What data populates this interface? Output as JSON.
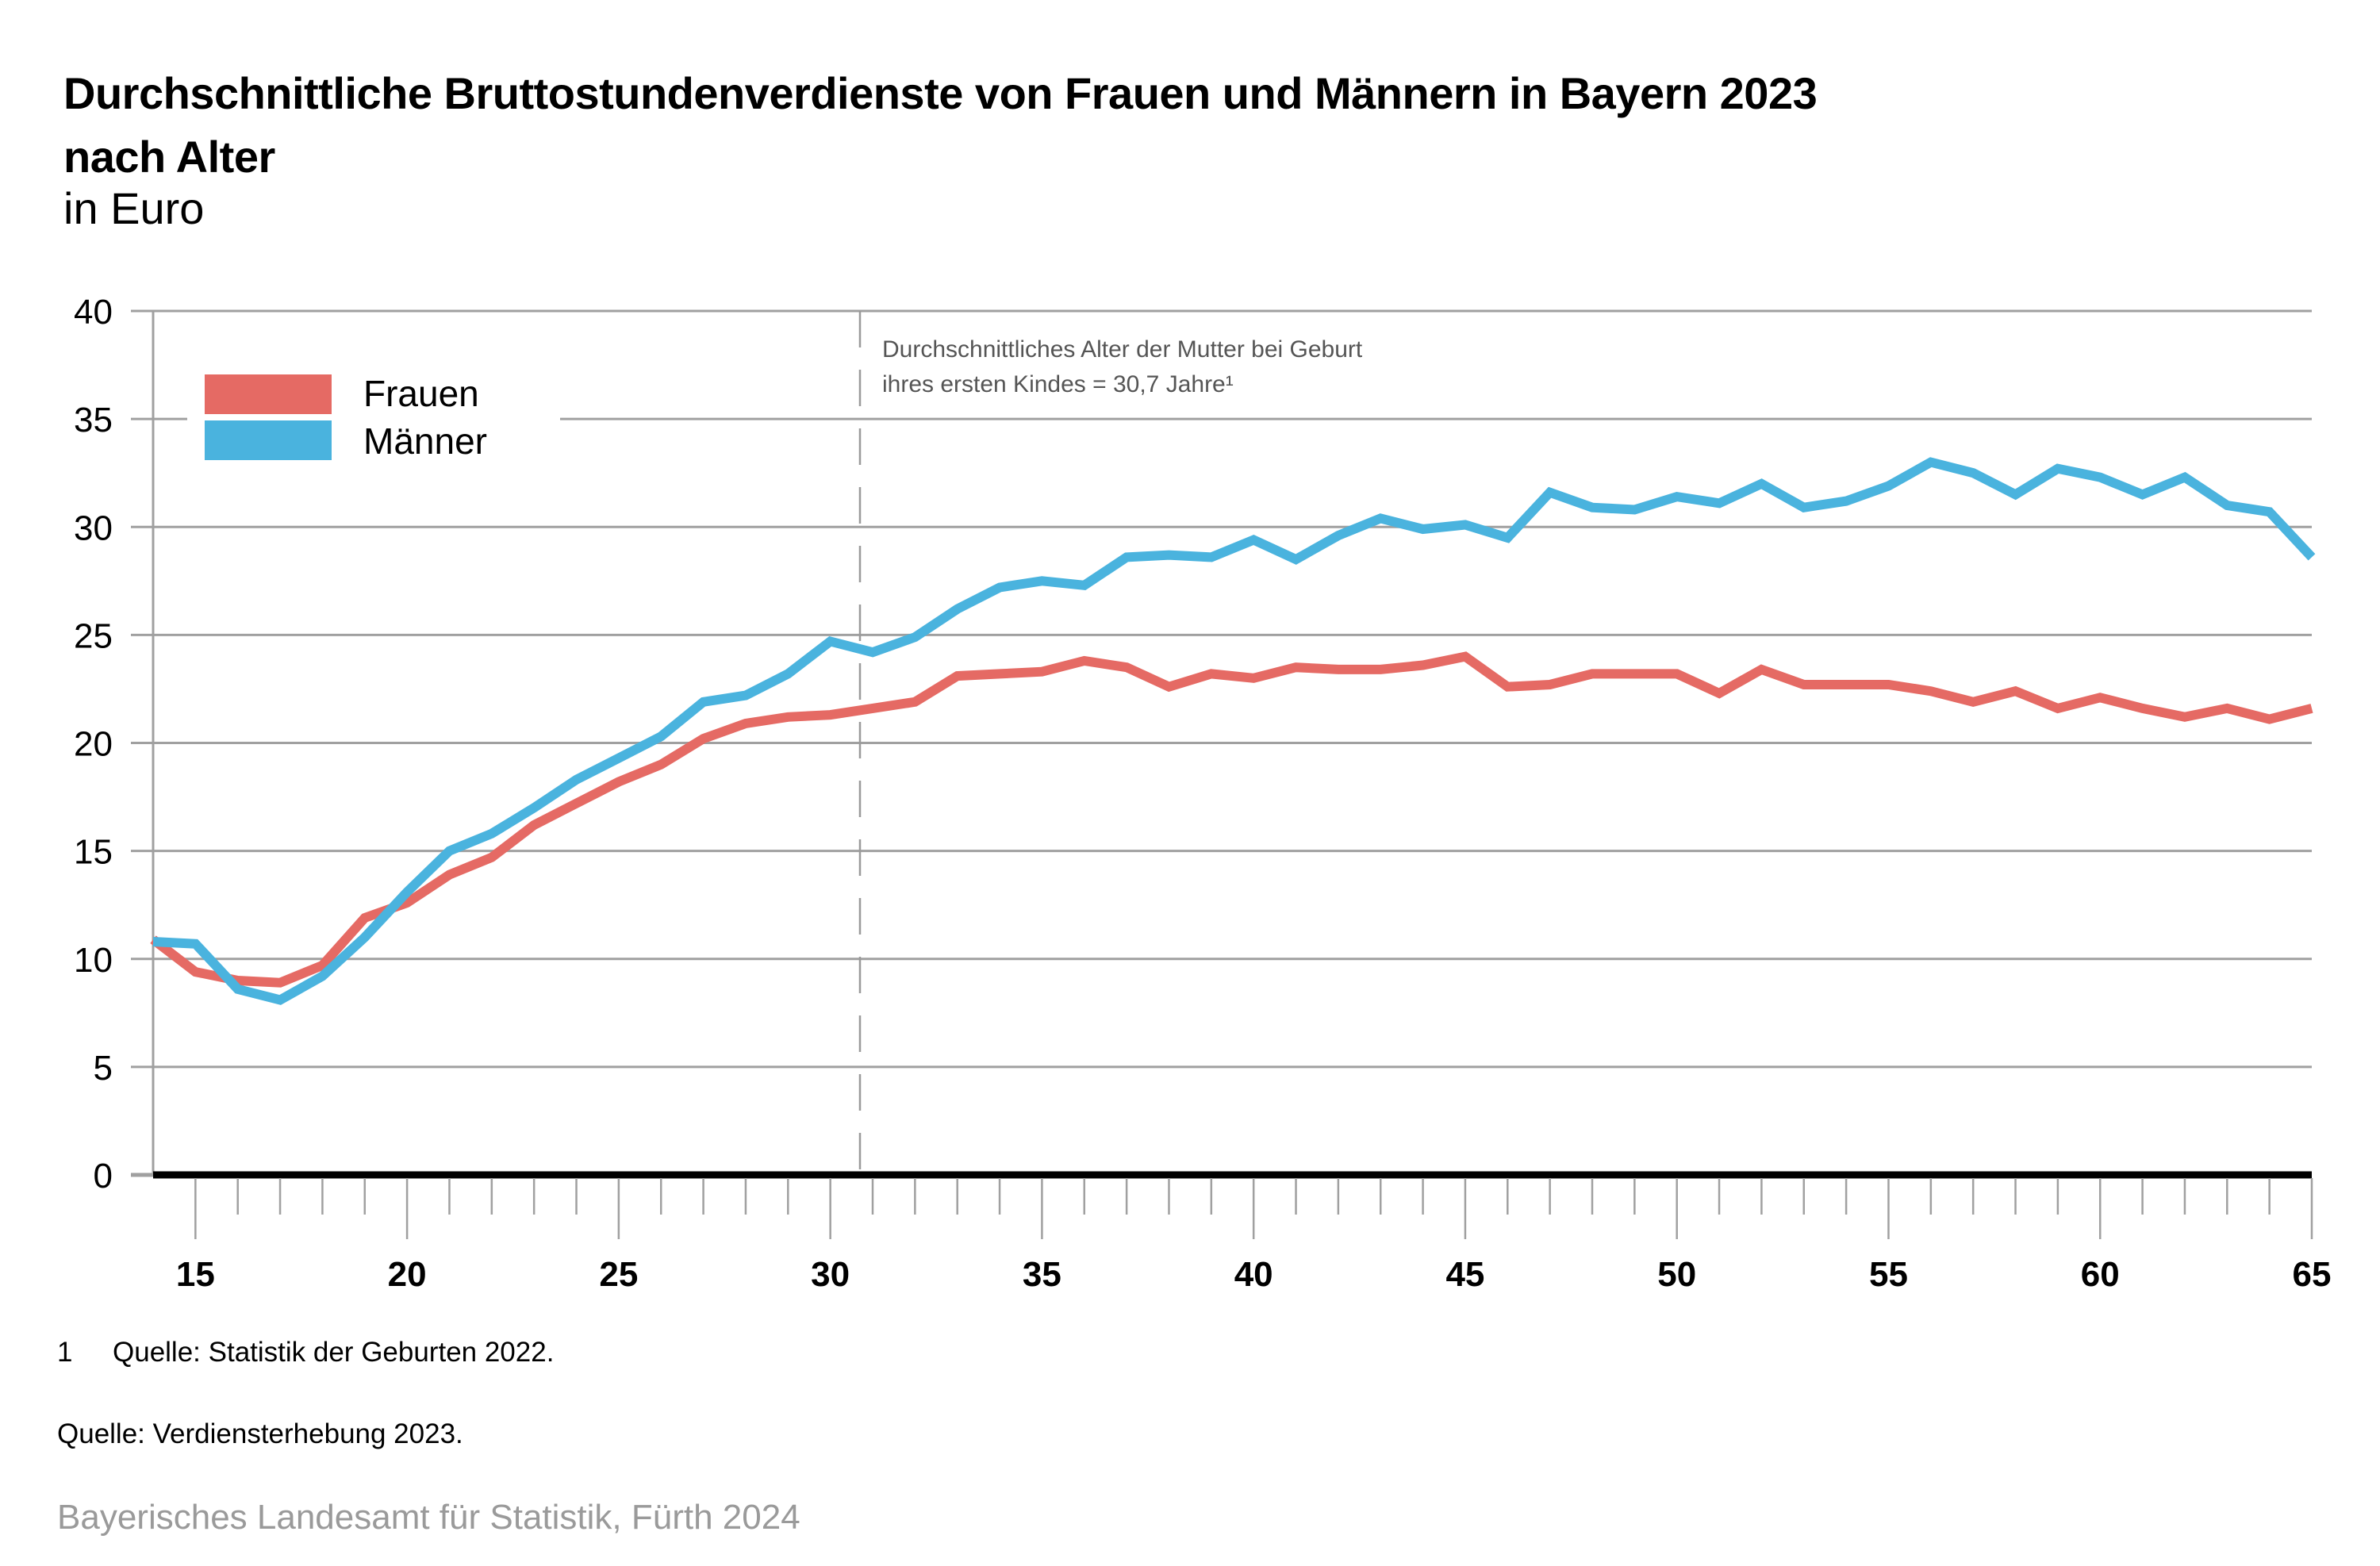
{
  "header": {
    "title_line1": "Durchschnittliche Bruttostundenverdienste von Frauen und Männern in Bayern 2023",
    "title_line2": "nach Alter",
    "subtitle": "in Euro"
  },
  "footer": {
    "footnote_number": "1",
    "footnote_text": "Quelle: Statistik der Geburten 2022.",
    "source": "Quelle: Verdiensterhebung 2023.",
    "credit": "Bayerisches Landesamt für Statistik, Fürth 2024"
  },
  "chart_data": {
    "type": "line",
    "title": "Durchschnittliche Bruttostundenverdienste von Frauen und Männern in Bayern 2023 nach Alter",
    "subtitle": "in Euro",
    "xlabel": "",
    "ylabel": "",
    "xlim": [
      14,
      65
    ],
    "ylim": [
      0,
      40
    ],
    "yticks": [
      0,
      5,
      10,
      15,
      20,
      25,
      30,
      35,
      40
    ],
    "ytick_labels": [
      "0",
      "5",
      "10",
      "15",
      "20",
      "25",
      "30",
      "35",
      "40"
    ],
    "xticks": [
      15,
      20,
      25,
      30,
      35,
      40,
      45,
      50,
      55,
      60,
      65
    ],
    "xtick_labels": [
      "15",
      "20",
      "25",
      "30",
      "35",
      "40",
      "45",
      "50",
      "55",
      "60",
      "65"
    ],
    "grid": "horizontal",
    "legend_position": "top-left",
    "x": [
      14,
      15,
      16,
      17,
      18,
      19,
      20,
      21,
      22,
      23,
      24,
      25,
      26,
      27,
      28,
      29,
      30,
      31,
      32,
      33,
      34,
      35,
      36,
      37,
      38,
      39,
      40,
      41,
      42,
      43,
      44,
      45,
      46,
      47,
      48,
      49,
      50,
      51,
      52,
      53,
      54,
      55,
      56,
      57,
      58,
      59,
      60,
      61,
      62,
      63,
      64,
      65
    ],
    "series": [
      {
        "name": "Frauen",
        "color": "#e56a64",
        "values": [
          10.9,
          9.4,
          9.0,
          8.9,
          9.7,
          11.9,
          12.6,
          13.9,
          14.7,
          16.2,
          17.2,
          18.2,
          19.0,
          20.2,
          20.9,
          21.2,
          21.3,
          21.6,
          21.9,
          23.1,
          23.2,
          23.3,
          23.8,
          23.5,
          22.6,
          23.2,
          23.0,
          23.5,
          23.4,
          23.4,
          23.6,
          24.0,
          22.6,
          22.7,
          23.2,
          23.2,
          23.2,
          22.3,
          23.4,
          22.7,
          22.7,
          22.7,
          22.4,
          21.9,
          22.4,
          21.6,
          22.1,
          21.6,
          21.2,
          21.6,
          21.1,
          21.6
        ]
      },
      {
        "name": "Männer",
        "color": "#4ab3de",
        "values": [
          10.8,
          10.7,
          8.6,
          8.1,
          9.2,
          11.0,
          13.1,
          15.0,
          15.8,
          17.0,
          18.3,
          19.3,
          20.3,
          21.9,
          22.2,
          23.2,
          24.7,
          24.2,
          24.9,
          26.2,
          27.2,
          27.5,
          27.3,
          28.6,
          28.7,
          28.6,
          29.4,
          28.5,
          29.6,
          30.4,
          29.9,
          30.1,
          29.5,
          31.6,
          30.9,
          30.8,
          31.4,
          31.1,
          32.0,
          30.9,
          31.2,
          31.9,
          33.0,
          32.5,
          31.5,
          32.7,
          32.3,
          31.5,
          32.3,
          31.0,
          30.7,
          28.6
        ]
      }
    ],
    "annotation": {
      "x": 30.7,
      "line1": "Durchschnittliches Alter der Mutter bei Geburt",
      "line2": "ihres ersten Kindes = 30,7 Jahre¹"
    }
  }
}
